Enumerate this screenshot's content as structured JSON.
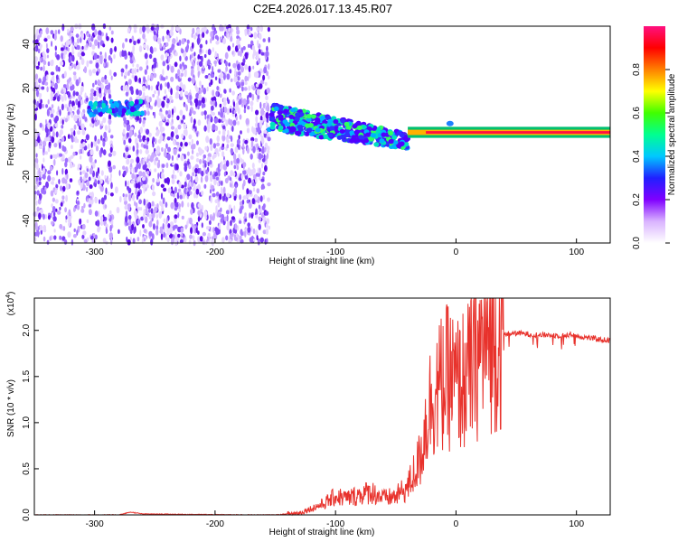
{
  "title": "C2E4.2026.017.13.45.R07",
  "chart_data": [
    {
      "type": "heatmap",
      "xlabel": "Height of straight line (km)",
      "ylabel": "Frequency (Hz)",
      "xlim": [
        -350,
        128
      ],
      "ylim": [
        -50,
        48
      ],
      "xticks": [
        -300,
        -200,
        -100,
        0,
        100
      ],
      "yticks": [
        -40,
        -20,
        0,
        20,
        40
      ],
      "colorbar": {
        "label": "Normalized spectral amplitude",
        "range": [
          0,
          1
        ],
        "ticks": [
          "0.0",
          "0.2",
          "0.4",
          "0.6",
          "0.8"
        ],
        "colors": [
          "#ffffff",
          "#d9b3ff",
          "#8000ff",
          "#2020ff",
          "#00c8ff",
          "#00ff90",
          "#40ff00",
          "#ffff00",
          "#ff8000",
          "#ff0000",
          "#ff1080"
        ]
      },
      "features": [
        {
          "name": "noise",
          "x_range": [
            -350,
            -155
          ],
          "freq_range": [
            -50,
            48
          ]
        },
        {
          "name": "early-echo",
          "x_range": [
            -305,
            -260
          ],
          "freq": 11
        },
        {
          "name": "drifting-echo",
          "x_from": -155,
          "x_to": -40,
          "freq_from": 7,
          "freq_to": -4
        },
        {
          "name": "stable-echo",
          "x_from": -40,
          "x_to": 128,
          "freq": 0
        }
      ]
    },
    {
      "type": "line",
      "xlabel": "Height of straight line (km)",
      "ylabel": "SNR (10 * v/v)",
      "scale_label": "(x10",
      "scale_exp": "4",
      "xlim": [
        -350,
        128
      ],
      "ylim": [
        0,
        2.35
      ],
      "xticks": [
        -300,
        -200,
        -100,
        0,
        100
      ],
      "yticks": [
        "0.0",
        "0.5",
        "1.0",
        "1.5",
        "2.0"
      ],
      "series": [
        {
          "name": "SNR",
          "color": "#e8322c",
          "x": [
            -350,
            -280,
            -270,
            -265,
            -260,
            -175,
            -150,
            -130,
            -110,
            -100,
            -90,
            -80,
            -70,
            -60,
            -50,
            -40,
            -30,
            -25,
            -20,
            -15,
            -10,
            -5,
            0,
            5,
            10,
            15,
            20,
            25,
            30,
            40,
            50,
            60,
            70,
            80,
            90,
            95,
            100,
            110,
            120,
            128
          ],
          "values": [
            0.0,
            0.0,
            0.03,
            0.02,
            0.01,
            0.0,
            0.0,
            0.02,
            0.12,
            0.2,
            0.18,
            0.22,
            0.25,
            0.18,
            0.2,
            0.3,
            0.6,
            1.0,
            1.3,
            1.35,
            1.45,
            1.5,
            1.4,
            1.45,
            1.5,
            1.65,
            1.8,
            1.87,
            1.92,
            1.96,
            1.97,
            1.96,
            1.95,
            1.95,
            1.94,
            1.96,
            1.94,
            1.92,
            1.9,
            1.89
          ]
        }
      ]
    }
  ]
}
